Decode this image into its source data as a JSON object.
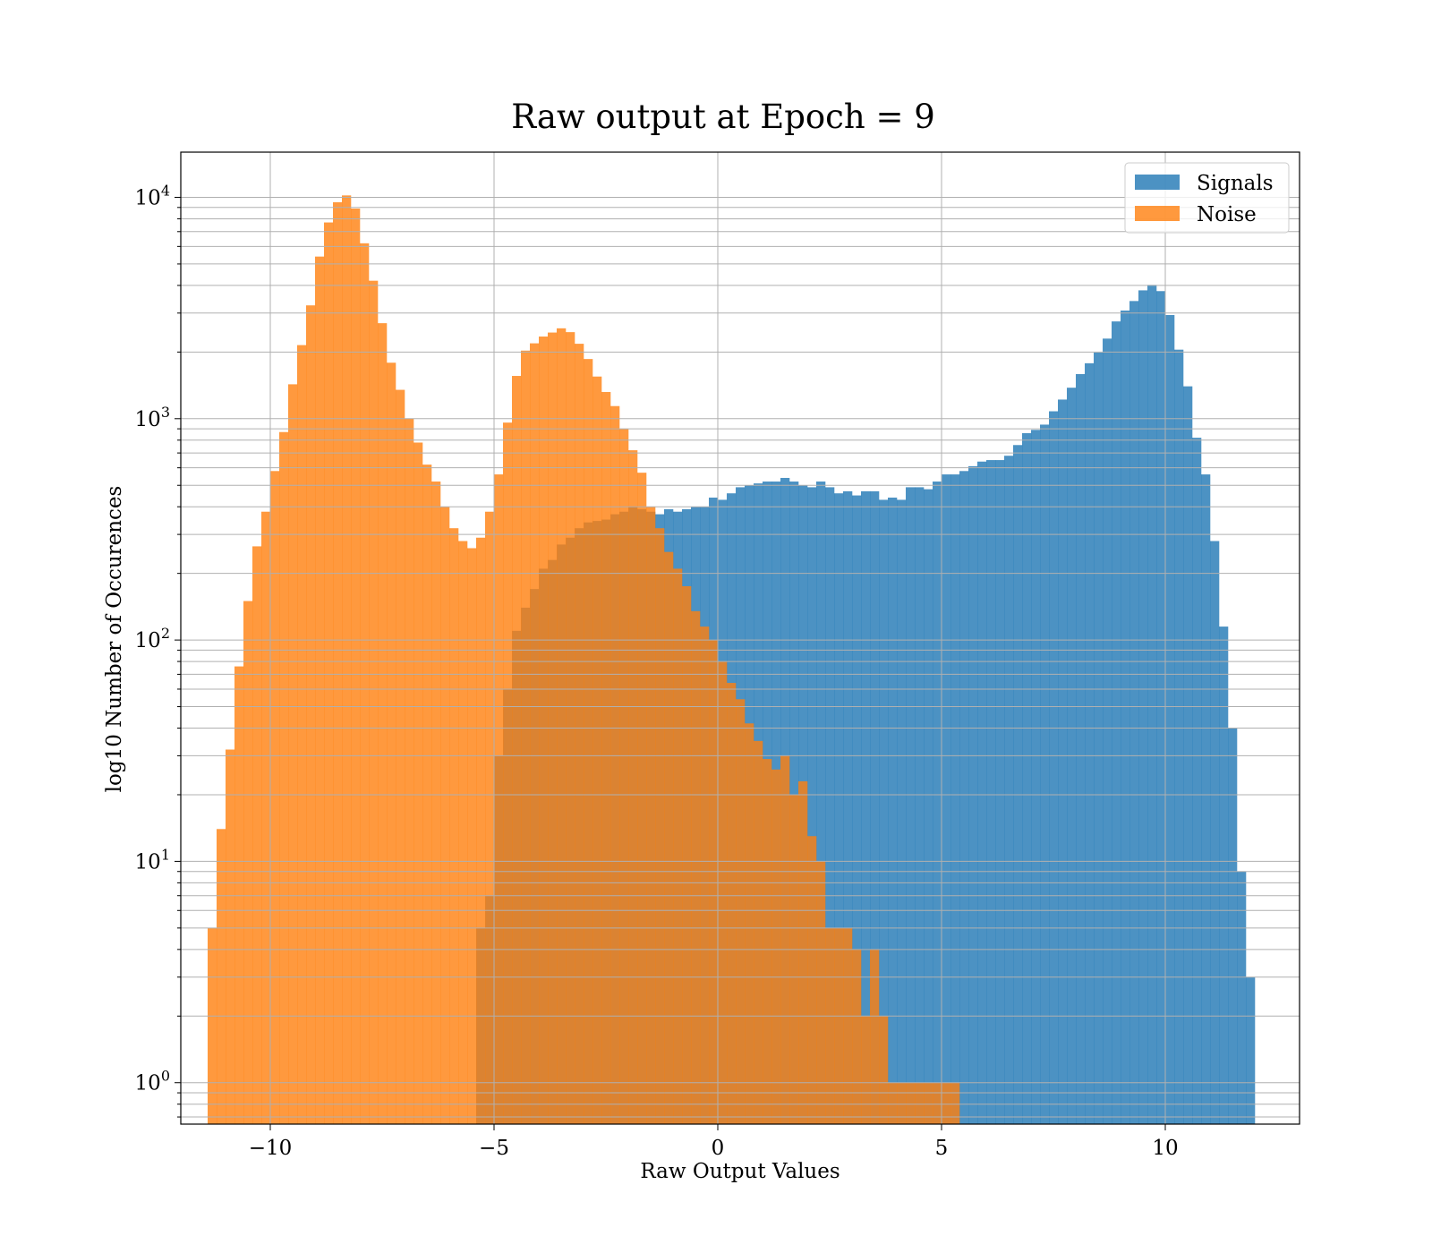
{
  "chart_data": {
    "type": "bar",
    "title": "Raw output at Epoch = 9",
    "xlabel": "Raw Output Values",
    "ylabel": "log10 Number of Occurences",
    "xlim": [
      -12.0,
      13.0
    ],
    "ylim": [
      0.65,
      16000
    ],
    "yscale": "log",
    "grid": true,
    "legend_position": "top-right",
    "x_ticks": [
      {
        "value": -10,
        "label": "−10"
      },
      {
        "value": -5,
        "label": "−5"
      },
      {
        "value": 0,
        "label": "0"
      },
      {
        "value": 5,
        "label": "5"
      },
      {
        "value": 10,
        "label": "10"
      }
    ],
    "y_ticks": [
      {
        "value": 1,
        "base": "10",
        "exp": "0"
      },
      {
        "value": 10,
        "base": "10",
        "exp": "1"
      },
      {
        "value": 100,
        "base": "10",
        "exp": "2"
      },
      {
        "value": 1000,
        "base": "10",
        "exp": "3"
      },
      {
        "value": 10000,
        "base": "10",
        "exp": "4"
      }
    ],
    "series": [
      {
        "name": "Signals",
        "color": "#1f77b4",
        "opacity": 0.8,
        "bins": [
          [
            -5.3,
            5
          ],
          [
            -5.1,
            7
          ],
          [
            -4.9,
            30
          ],
          [
            -4.7,
            60
          ],
          [
            -4.5,
            110
          ],
          [
            -4.3,
            140
          ],
          [
            -4.1,
            170
          ],
          [
            -3.9,
            210
          ],
          [
            -3.7,
            230
          ],
          [
            -3.5,
            270
          ],
          [
            -3.3,
            290
          ],
          [
            -3.1,
            320
          ],
          [
            -2.9,
            340
          ],
          [
            -2.7,
            345
          ],
          [
            -2.5,
            350
          ],
          [
            -2.3,
            370
          ],
          [
            -2.1,
            380
          ],
          [
            -1.9,
            400
          ],
          [
            -1.7,
            390
          ],
          [
            -1.5,
            380
          ],
          [
            -1.3,
            370
          ],
          [
            -1.1,
            390
          ],
          [
            -0.9,
            380
          ],
          [
            -0.7,
            390
          ],
          [
            -0.5,
            400
          ],
          [
            -0.3,
            400
          ],
          [
            -0.1,
            440
          ],
          [
            0.1,
            430
          ],
          [
            0.3,
            460
          ],
          [
            0.5,
            490
          ],
          [
            0.7,
            500
          ],
          [
            0.9,
            510
          ],
          [
            1.1,
            520
          ],
          [
            1.3,
            520
          ],
          [
            1.5,
            540
          ],
          [
            1.7,
            520
          ],
          [
            1.9,
            500
          ],
          [
            2.1,
            490
          ],
          [
            2.3,
            520
          ],
          [
            2.5,
            490
          ],
          [
            2.7,
            460
          ],
          [
            2.9,
            470
          ],
          [
            3.1,
            450
          ],
          [
            3.3,
            470
          ],
          [
            3.5,
            470
          ],
          [
            3.7,
            430
          ],
          [
            3.9,
            440
          ],
          [
            4.1,
            430
          ],
          [
            4.3,
            490
          ],
          [
            4.5,
            490
          ],
          [
            4.7,
            480
          ],
          [
            4.9,
            520
          ],
          [
            5.1,
            560
          ],
          [
            5.3,
            560
          ],
          [
            5.5,
            580
          ],
          [
            5.7,
            610
          ],
          [
            5.9,
            640
          ],
          [
            6.1,
            650
          ],
          [
            6.3,
            650
          ],
          [
            6.5,
            680
          ],
          [
            6.7,
            760
          ],
          [
            6.9,
            860
          ],
          [
            7.1,
            890
          ],
          [
            7.3,
            940
          ],
          [
            7.5,
            1080
          ],
          [
            7.7,
            1220
          ],
          [
            7.9,
            1380
          ],
          [
            8.1,
            1590
          ],
          [
            8.3,
            1780
          ],
          [
            8.5,
            1990
          ],
          [
            8.7,
            2300
          ],
          [
            8.9,
            2750
          ],
          [
            9.1,
            3080
          ],
          [
            9.3,
            3400
          ],
          [
            9.5,
            3800
          ],
          [
            9.7,
            4020
          ],
          [
            9.9,
            3770
          ],
          [
            10.1,
            2940
          ],
          [
            10.3,
            2050
          ],
          [
            10.5,
            1400
          ],
          [
            10.7,
            820
          ],
          [
            10.9,
            560
          ],
          [
            11.1,
            280
          ],
          [
            11.3,
            115
          ],
          [
            11.5,
            40
          ],
          [
            11.7,
            9
          ],
          [
            11.9,
            3
          ]
        ]
      },
      {
        "name": "Noise",
        "color": "#ff7f0e",
        "opacity": 0.8,
        "bins": [
          [
            -11.3,
            5
          ],
          [
            -11.1,
            14
          ],
          [
            -10.9,
            32
          ],
          [
            -10.7,
            76
          ],
          [
            -10.5,
            150
          ],
          [
            -10.3,
            265
          ],
          [
            -10.1,
            380
          ],
          [
            -9.9,
            580
          ],
          [
            -9.7,
            870
          ],
          [
            -9.5,
            1430
          ],
          [
            -9.3,
            2150
          ],
          [
            -9.1,
            3250
          ],
          [
            -8.9,
            5400
          ],
          [
            -8.7,
            7700
          ],
          [
            -8.5,
            9500
          ],
          [
            -8.3,
            10200
          ],
          [
            -8.1,
            8900
          ],
          [
            -7.9,
            6200
          ],
          [
            -7.7,
            4200
          ],
          [
            -7.5,
            2700
          ],
          [
            -7.3,
            1790
          ],
          [
            -7.1,
            1350
          ],
          [
            -6.9,
            1000
          ],
          [
            -6.7,
            780
          ],
          [
            -6.5,
            620
          ],
          [
            -6.3,
            520
          ],
          [
            -6.1,
            400
          ],
          [
            -5.9,
            320
          ],
          [
            -5.7,
            280
          ],
          [
            -5.5,
            260
          ],
          [
            -5.3,
            290
          ],
          [
            -5.1,
            380
          ],
          [
            -4.9,
            560
          ],
          [
            -4.7,
            960
          ],
          [
            -4.5,
            1560
          ],
          [
            -4.3,
            2030
          ],
          [
            -4.1,
            2190
          ],
          [
            -3.9,
            2350
          ],
          [
            -3.7,
            2450
          ],
          [
            -3.5,
            2560
          ],
          [
            -3.3,
            2460
          ],
          [
            -3.1,
            2180
          ],
          [
            -2.9,
            1860
          ],
          [
            -2.7,
            1550
          ],
          [
            -2.5,
            1320
          ],
          [
            -2.3,
            1140
          ],
          [
            -2.1,
            900
          ],
          [
            -1.9,
            720
          ],
          [
            -1.7,
            570
          ],
          [
            -1.5,
            400
          ],
          [
            -1.3,
            320
          ],
          [
            -1.1,
            250
          ],
          [
            -0.9,
            210
          ],
          [
            -0.7,
            175
          ],
          [
            -0.5,
            135
          ],
          [
            -0.3,
            115
          ],
          [
            -0.1,
            100
          ],
          [
            0.1,
            80
          ],
          [
            0.3,
            64
          ],
          [
            0.5,
            54
          ],
          [
            0.7,
            42
          ],
          [
            0.9,
            35
          ],
          [
            1.1,
            29
          ],
          [
            1.3,
            26
          ],
          [
            1.5,
            30
          ],
          [
            1.7,
            20
          ],
          [
            1.9,
            23
          ],
          [
            2.1,
            13
          ],
          [
            2.3,
            10
          ],
          [
            2.5,
            5
          ],
          [
            2.7,
            5
          ],
          [
            2.9,
            5
          ],
          [
            3.1,
            4
          ],
          [
            3.3,
            2
          ],
          [
            3.5,
            4
          ],
          [
            3.7,
            2
          ],
          [
            3.9,
            1
          ],
          [
            4.1,
            1
          ],
          [
            4.3,
            1
          ],
          [
            4.5,
            1
          ],
          [
            4.7,
            1
          ],
          [
            4.9,
            1
          ],
          [
            5.1,
            1
          ],
          [
            5.3,
            1
          ]
        ]
      }
    ]
  }
}
